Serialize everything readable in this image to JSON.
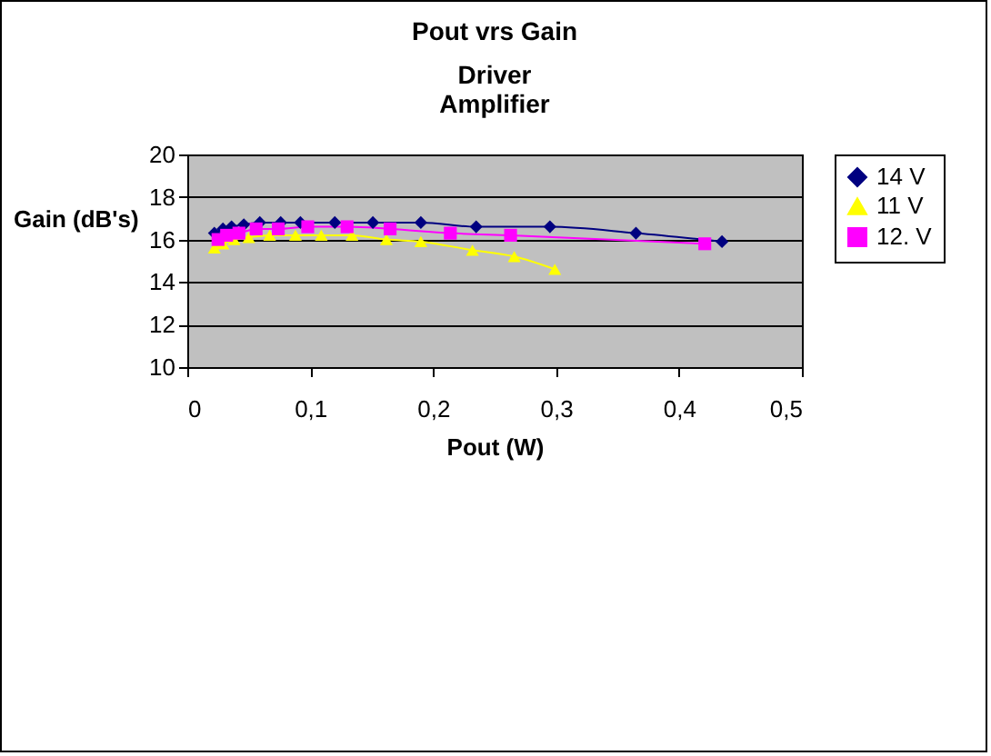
{
  "chart_data": {
    "type": "line",
    "title": "Pout vrs Gain",
    "subtitle": "Driver Amplifier",
    "xlabel": "Pout (W)",
    "ylabel": "Gain (dB's)",
    "xlim": [
      0,
      0.5
    ],
    "xticks": [
      0,
      {
        "value": 0.1,
        "label": "0,1"
      },
      {
        "value": 0.2,
        "label": "0,2"
      },
      {
        "value": 0.3,
        "label": "0,3"
      },
      {
        "value": 0.4,
        "label": "0,4"
      },
      {
        "value": 0.5,
        "label": "0,5"
      }
    ],
    "ylim": [
      10,
      20
    ],
    "yticks": [
      10,
      12,
      14,
      16,
      18,
      20
    ],
    "grid": "y",
    "legend": "right",
    "series": [
      {
        "name": "14 V",
        "color": "#000080",
        "marker": "diamond",
        "x": [
          0.022,
          0.029,
          0.036,
          0.046,
          0.059,
          0.076,
          0.092,
          0.12,
          0.151,
          0.19,
          0.235,
          0.295,
          0.365,
          0.435
        ],
        "values": [
          16.3,
          16.5,
          16.6,
          16.7,
          16.8,
          16.8,
          16.8,
          16.8,
          16.8,
          16.8,
          16.6,
          16.6,
          16.3,
          15.9
        ]
      },
      {
        "name": "11 V",
        "color": "#ffff00",
        "marker": "triangle",
        "x": [
          0.022,
          0.029,
          0.038,
          0.05,
          0.067,
          0.088,
          0.109,
          0.134,
          0.162,
          0.19,
          0.232,
          0.266,
          0.299
        ],
        "values": [
          15.6,
          15.8,
          16.0,
          16.1,
          16.2,
          16.2,
          16.2,
          16.2,
          16.0,
          15.9,
          15.5,
          15.2,
          14.6
        ]
      },
      {
        "name": "12. V",
        "color": "#ff00ff",
        "marker": "square",
        "x": [
          0.025,
          0.032,
          0.042,
          0.056,
          0.074,
          0.098,
          0.13,
          0.165,
          0.214,
          0.263,
          0.421
        ],
        "values": [
          16.0,
          16.2,
          16.3,
          16.5,
          16.5,
          16.6,
          16.6,
          16.5,
          16.3,
          16.2,
          15.8
        ]
      }
    ]
  }
}
